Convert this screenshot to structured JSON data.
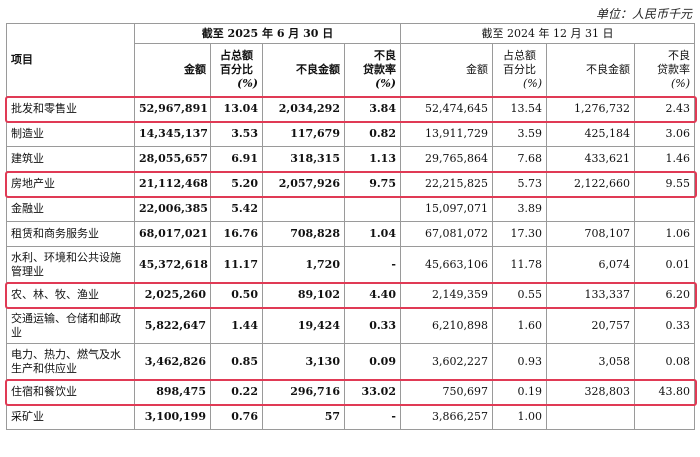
{
  "unit_label": "单位：人民币千元",
  "header": {
    "item": "项目",
    "period_current": "截至 2025 年 6 月 30 日",
    "period_prior": "截至 2024 年 12 月 31 日",
    "current": {
      "amount": "金额",
      "share_line1": "占总额",
      "share_line2": "百分比",
      "share_unit": "(%)",
      "npl_amount": "不良金额",
      "npl_ratio_line1": "不良",
      "npl_ratio_line2": "贷款率",
      "npl_ratio_unit": "(%)"
    },
    "prior": {
      "amount": "金额",
      "share_line1": "占总额",
      "share_line2": "百分比",
      "share_unit": "(%)",
      "npl_amount": "不良金额",
      "npl_ratio_line1": "不良",
      "npl_ratio_line2": "贷款率",
      "npl_ratio_unit": "(%)"
    }
  },
  "rows": [
    {
      "name": "批发和零售业",
      "c_amount": "52,967,891",
      "c_share": "13.04",
      "c_npl": "2,034,292",
      "c_ratio": "3.84",
      "p_amount": "52,474,645",
      "p_share": "13.54",
      "p_npl": "1,276,732",
      "p_ratio": "2.43",
      "highlight": true
    },
    {
      "name": "制造业",
      "c_amount": "14,345,137",
      "c_share": "3.53",
      "c_npl": "117,679",
      "c_ratio": "0.82",
      "p_amount": "13,911,729",
      "p_share": "3.59",
      "p_npl": "425,184",
      "p_ratio": "3.06",
      "highlight": false
    },
    {
      "name": "建筑业",
      "c_amount": "28,055,657",
      "c_share": "6.91",
      "c_npl": "318,315",
      "c_ratio": "1.13",
      "p_amount": "29,765,864",
      "p_share": "7.68",
      "p_npl": "433,621",
      "p_ratio": "1.46",
      "highlight": false
    },
    {
      "name": "房地产业",
      "c_amount": "21,112,468",
      "c_share": "5.20",
      "c_npl": "2,057,926",
      "c_ratio": "9.75",
      "p_amount": "22,215,825",
      "p_share": "5.73",
      "p_npl": "2,122,660",
      "p_ratio": "9.55",
      "highlight": true
    },
    {
      "name": "金融业",
      "c_amount": "22,006,385",
      "c_share": "5.42",
      "c_npl": "",
      "c_ratio": "",
      "p_amount": "15,097,071",
      "p_share": "3.89",
      "p_npl": "",
      "p_ratio": "",
      "highlight": false
    },
    {
      "name": "租赁和商务服务业",
      "c_amount": "68,017,021",
      "c_share": "16.76",
      "c_npl": "708,828",
      "c_ratio": "1.04",
      "p_amount": "67,081,072",
      "p_share": "17.30",
      "p_npl": "708,107",
      "p_ratio": "1.06",
      "highlight": false
    },
    {
      "name": "水利、环境和公共设施管理业",
      "c_amount": "45,372,618",
      "c_share": "11.17",
      "c_npl": "1,720",
      "c_ratio": "-",
      "p_amount": "45,663,106",
      "p_share": "11.78",
      "p_npl": "6,074",
      "p_ratio": "0.01",
      "highlight": false
    },
    {
      "name": "农、林、牧、渔业",
      "c_amount": "2,025,260",
      "c_share": "0.50",
      "c_npl": "89,102",
      "c_ratio": "4.40",
      "p_amount": "2,149,359",
      "p_share": "0.55",
      "p_npl": "133,337",
      "p_ratio": "6.20",
      "highlight": true
    },
    {
      "name": "交通运输、仓储和邮政业",
      "c_amount": "5,822,647",
      "c_share": "1.44",
      "c_npl": "19,424",
      "c_ratio": "0.33",
      "p_amount": "6,210,898",
      "p_share": "1.60",
      "p_npl": "20,757",
      "p_ratio": "0.33",
      "highlight": false
    },
    {
      "name": "电力、热力、燃气及水生产和供应业",
      "c_amount": "3,462,826",
      "c_share": "0.85",
      "c_npl": "3,130",
      "c_ratio": "0.09",
      "p_amount": "3,602,227",
      "p_share": "0.93",
      "p_npl": "3,058",
      "p_ratio": "0.08",
      "highlight": false
    },
    {
      "name": "住宿和餐饮业",
      "c_amount": "898,475",
      "c_share": "0.22",
      "c_npl": "296,716",
      "c_ratio": "33.02",
      "p_amount": "750,697",
      "p_share": "0.19",
      "p_npl": "328,803",
      "p_ratio": "43.80",
      "highlight": true
    },
    {
      "name": "采矿业",
      "c_amount": "3,100,199",
      "c_share": "0.76",
      "c_npl": "57",
      "c_ratio": "-",
      "p_amount": "3,866,257",
      "p_share": "1.00",
      "p_npl": "",
      "p_ratio": "",
      "highlight": false
    }
  ],
  "colors": {
    "highlight_border": "#e03a55",
    "grid_line": "#9a9a9a"
  }
}
